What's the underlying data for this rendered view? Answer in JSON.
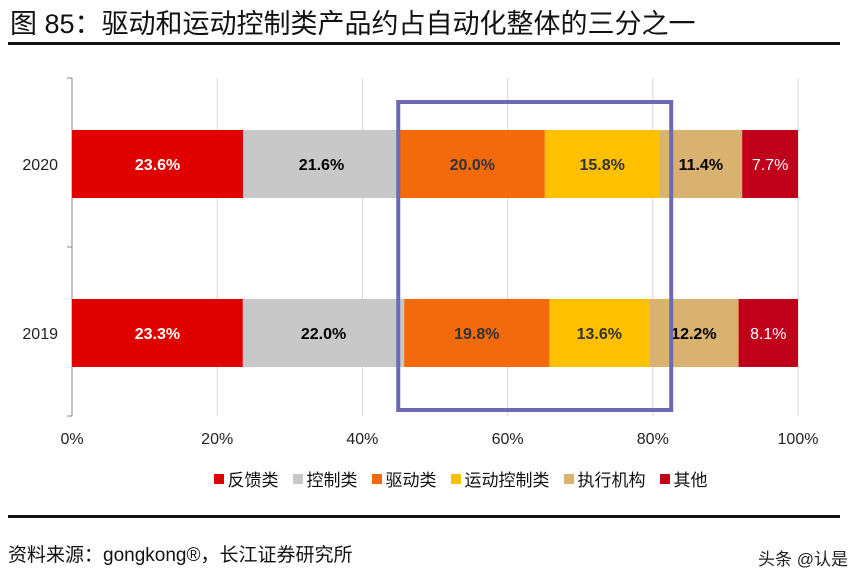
{
  "title": "图 85：驱动和运动控制类产品约占自动化整体的三分之一",
  "source": "资料来源：gongkong®，长江证券研究所",
  "watermark": "头条 @认是",
  "chart_data": {
    "type": "bar",
    "orientation": "horizontal",
    "stacked": "percent",
    "categories": [
      "2020",
      "2019"
    ],
    "series": [
      {
        "name": "反馈类",
        "color": "#e00000",
        "label_color": "#ffffff",
        "values": [
          23.6,
          23.3
        ]
      },
      {
        "name": "控制类",
        "color": "#c8c8c8",
        "label_color": "#000000",
        "values": [
          21.6,
          22.0
        ]
      },
      {
        "name": "驱动类",
        "color": "#f26a0c",
        "label_color": "#333333",
        "values": [
          20.0,
          19.8
        ]
      },
      {
        "name": "运动控制类",
        "color": "#ffc000",
        "label_color": "#333333",
        "values": [
          15.8,
          13.6
        ]
      },
      {
        "name": "执行机构",
        "color": "#d9b26f",
        "label_color": "#000000",
        "values": [
          11.4,
          12.2
        ]
      },
      {
        "name": "其他",
        "color": "#c0001a",
        "label_color": "#ffffff",
        "values": [
          7.7,
          8.1
        ]
      }
    ],
    "xticks": [
      "0%",
      "20%",
      "40%",
      "60%",
      "80%",
      "100%"
    ],
    "xlim": [
      0,
      100
    ],
    "grid": true,
    "legend_position": "bottom",
    "highlight_box": {
      "x_range_percent": [
        44.8,
        82.4
      ],
      "color": "#6b6bb3"
    }
  }
}
